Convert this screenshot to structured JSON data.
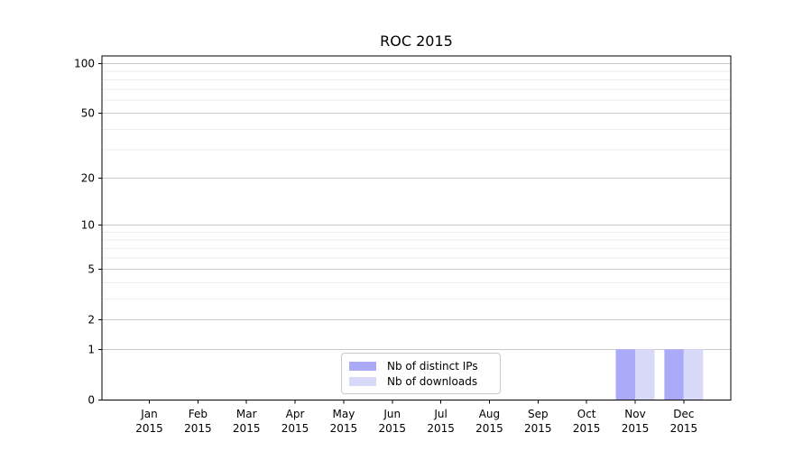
{
  "chart_data": {
    "type": "bar",
    "title": "ROC 2015",
    "x_months": [
      "Jan",
      "Feb",
      "Mar",
      "Apr",
      "May",
      "Jun",
      "Jul",
      "Aug",
      "Sep",
      "Oct",
      "Nov",
      "Dec"
    ],
    "x_year": "2015",
    "series": [
      {
        "name": "Nb of distinct IPs",
        "color": "#aaaaf8",
        "values": [
          0,
          0,
          0,
          0,
          0,
          0,
          0,
          0,
          0,
          0,
          1,
          1
        ]
      },
      {
        "name": "Nb of downloads",
        "color": "#d8d8f8",
        "values": [
          0,
          0,
          0,
          0,
          0,
          0,
          0,
          0,
          0,
          0,
          1,
          1
        ]
      }
    ],
    "yscale": "log10(1+v)",
    "ylim": [
      0,
      112
    ],
    "ytick_labels": [
      "0",
      "1",
      "2",
      "5",
      "10",
      "20",
      "50",
      "100"
    ],
    "ytick_values": [
      0,
      1,
      2,
      5,
      10,
      20,
      50,
      100
    ],
    "minor_ytick_values": [
      3,
      4,
      6,
      7,
      8,
      9,
      30,
      40,
      60,
      70,
      80,
      90
    ],
    "grid": true,
    "legend_position": "lower center",
    "colors": {
      "major_grid": "#c9c9c9",
      "minor_grid": "#ececec",
      "axis": "#000000",
      "text": "#000000"
    }
  }
}
